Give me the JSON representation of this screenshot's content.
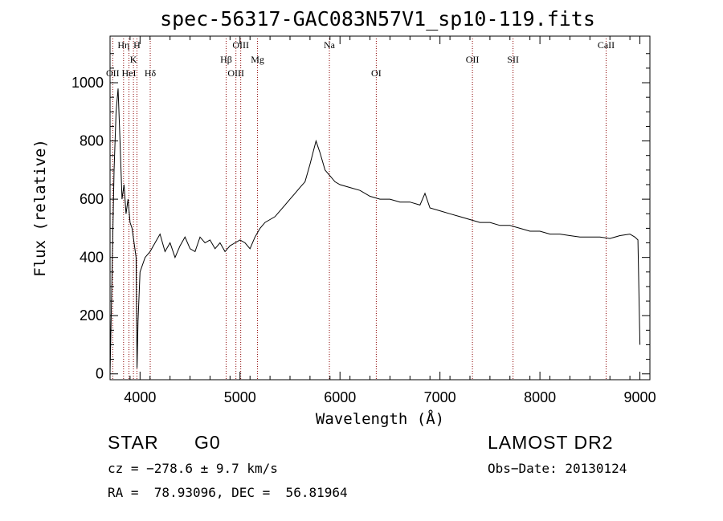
{
  "chart_data": {
    "type": "line",
    "title": "spec-56317-GAC083N57V1_sp10-119.fits",
    "xlabel": "Wavelength (Å)",
    "ylabel": "Flux (relative)",
    "xlim": [
      3700,
      9100
    ],
    "ylim": [
      -20,
      1160
    ],
    "xticks": [
      4000,
      5000,
      6000,
      7000,
      8000,
      9000
    ],
    "yticks": [
      0,
      200,
      400,
      600,
      800,
      1000
    ],
    "grid": false,
    "series": [
      {
        "x": [
          3700,
          3720,
          3740,
          3760,
          3780,
          3800,
          3820,
          3840,
          3860,
          3880,
          3900,
          3920,
          3940,
          3960,
          3970,
          3980,
          4000,
          4050,
          4100,
          4150,
          4200,
          4250,
          4300,
          4350,
          4400,
          4450,
          4500,
          4550,
          4600,
          4650,
          4700,
          4750,
          4800,
          4850,
          4900,
          4950,
          5000,
          5050,
          5100,
          5150,
          5200,
          5250,
          5300,
          5350,
          5400,
          5450,
          5500,
          5550,
          5600,
          5650,
          5700,
          5730,
          5760,
          5780,
          5800,
          5850,
          5900,
          5950,
          6000,
          6100,
          6200,
          6300,
          6400,
          6500,
          6600,
          6700,
          6800,
          6850,
          6900,
          7000,
          7100,
          7200,
          7300,
          7400,
          7500,
          7600,
          7700,
          7800,
          7900,
          8000,
          8100,
          8200,
          8300,
          8400,
          8500,
          8600,
          8700,
          8800,
          8900,
          8950,
          8980,
          9000
        ],
        "y": [
          0,
          350,
          700,
          900,
          980,
          800,
          600,
          650,
          550,
          600,
          520,
          500,
          450,
          400,
          20,
          180,
          350,
          400,
          420,
          450,
          480,
          420,
          450,
          400,
          440,
          470,
          430,
          420,
          470,
          450,
          460,
          430,
          450,
          420,
          440,
          450,
          460,
          450,
          430,
          470,
          500,
          520,
          530,
          540,
          560,
          580,
          600,
          620,
          640,
          660,
          720,
          760,
          800,
          780,
          760,
          700,
          680,
          660,
          650,
          640,
          630,
          610,
          600,
          600,
          590,
          590,
          580,
          620,
          570,
          560,
          550,
          540,
          530,
          520,
          520,
          510,
          510,
          500,
          490,
          490,
          480,
          480,
          475,
          470,
          470,
          470,
          465,
          475,
          480,
          470,
          460,
          100
        ]
      }
    ],
    "lines": [
      {
        "label": "OII",
        "x": 3727,
        "row": 3
      },
      {
        "label": "Hη",
        "x": 3835,
        "row": 1
      },
      {
        "label": "HeI",
        "x": 3889,
        "row": 3
      },
      {
        "label": "K",
        "x": 3934,
        "row": 2
      },
      {
        "label": "H",
        "x": 3969,
        "row": 1
      },
      {
        "label": "Hδ",
        "x": 4102,
        "row": 3
      },
      {
        "label": "Hβ",
        "x": 4861,
        "row": 2
      },
      {
        "label": "OIII",
        "x": 4959,
        "row": 3
      },
      {
        "label": "OIII",
        "x": 5007,
        "row": 1
      },
      {
        "label": "Mg",
        "x": 5175,
        "row": 2
      },
      {
        "label": "Na",
        "x": 5894,
        "row": 1
      },
      {
        "label": "OI",
        "x": 6363,
        "row": 3
      },
      {
        "label": "OII",
        "x": 7325,
        "row": 2
      },
      {
        "label": "SII",
        "x": 7731,
        "row": 2
      },
      {
        "label": "CaII",
        "x": 8662,
        "row": 1
      }
    ]
  },
  "info": {
    "object_class": "STAR",
    "subclass": "G0",
    "release": "LAMOST DR2",
    "cz": "cz = −278.6 ± 9.7 km/s",
    "obs_date": "Obs−Date: 20130124",
    "coords": "RA =  78.93096, DEC =  56.81964"
  },
  "colors": {
    "spectrum": "#000000",
    "line_marker": "#8b0000",
    "axes": "#000000"
  }
}
